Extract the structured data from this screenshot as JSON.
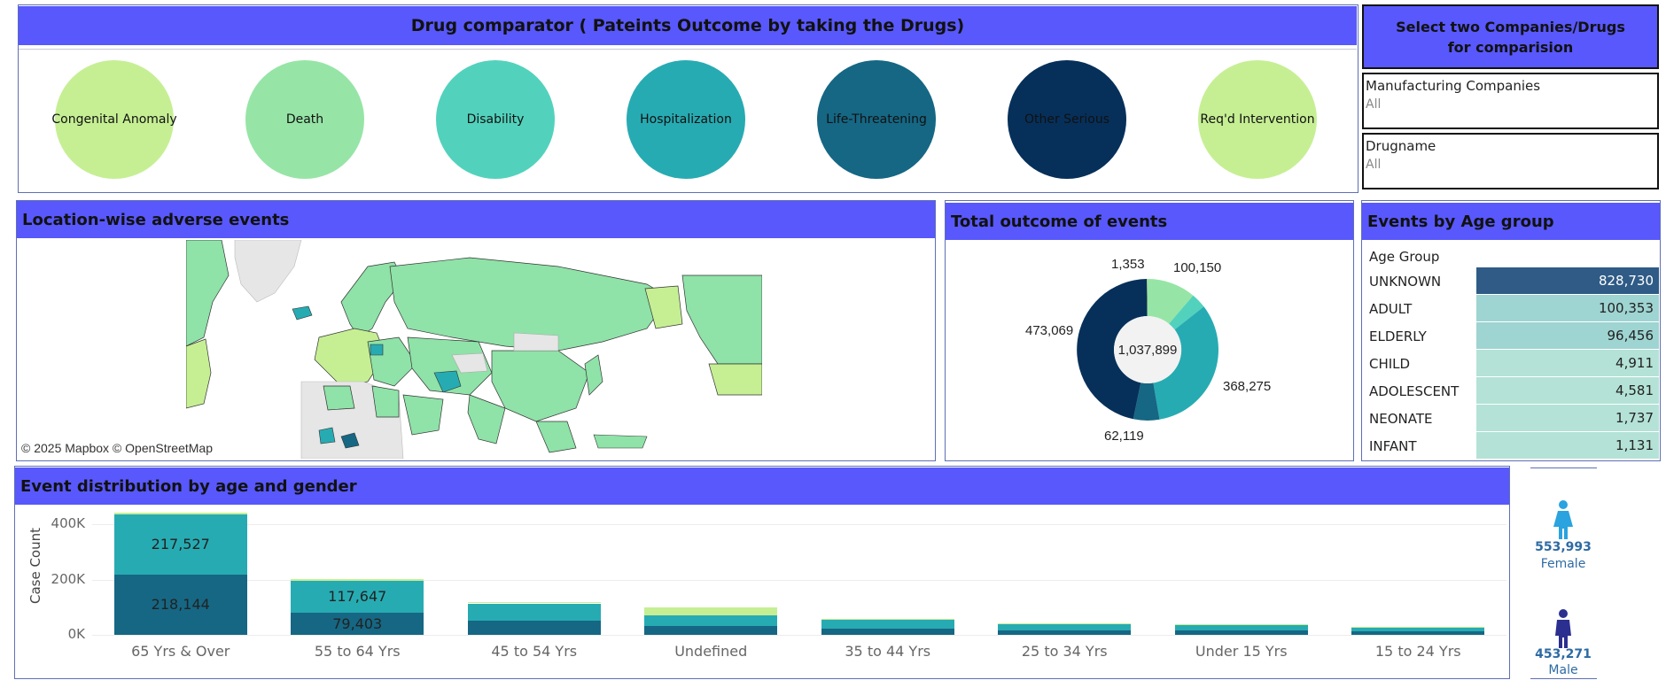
{
  "header": {
    "title": "Drug comparator ( Pateints Outcome by taking the Drugs)"
  },
  "outcomes": [
    {
      "label": "Congenital Anomaly",
      "color": "#c6ef94"
    },
    {
      "label": "Death",
      "color": "#96e5a6"
    },
    {
      "label": "Disability",
      "color": "#52d2bc"
    },
    {
      "label": "Hospitalization",
      "color": "#27abb2"
    },
    {
      "label": "Life-Threatening",
      "color": "#156784"
    },
    {
      "label": "Other Serious",
      "color": "#06305a"
    },
    {
      "label": "Req'd Intervention",
      "color": "#c6ef94"
    }
  ],
  "filters": {
    "heading_line1": "Select two Companies/Drugs",
    "heading_line2": "for comparision",
    "company_label": "Manufacturing Companies",
    "company_value": "All",
    "drug_label": "Drugname",
    "drug_value": "All"
  },
  "map": {
    "title": "Location-wise adverse events",
    "credit": "© 2025 Mapbox © OpenStreetMap"
  },
  "donut": {
    "title": "Total outcome of events",
    "center_label": "1,037,899",
    "labels": [
      "1,353",
      "100,150",
      "473,069",
      "368,275",
      "62,119"
    ]
  },
  "age_group": {
    "title": "Events by Age group",
    "header": "Age Group",
    "rows": [
      {
        "name": "UNKNOWN",
        "value": "828,730",
        "color": "#2f5b86",
        "text_color": "#ffffff"
      },
      {
        "name": "ADULT",
        "value": "100,353",
        "color": "#9ed4d2",
        "text_color": "#222222"
      },
      {
        "name": "ELDERLY",
        "value": "96,456",
        "color": "#9ed4d2",
        "text_color": "#222222"
      },
      {
        "name": "CHILD",
        "value": "4,911",
        "color": "#b4e2d6",
        "text_color": "#222222"
      },
      {
        "name": "ADOLESCENT",
        "value": "4,581",
        "color": "#b4e2d6",
        "text_color": "#222222"
      },
      {
        "name": "NEONATE",
        "value": "1,737",
        "color": "#b4e2d6",
        "text_color": "#222222"
      },
      {
        "name": "INFANT",
        "value": "1,131",
        "color": "#b4e2d6",
        "text_color": "#222222"
      }
    ]
  },
  "distribution": {
    "title": "Event distribution by age and gender"
  },
  "chart_data": {
    "type": "bar",
    "stacked": true,
    "title": "Event distribution by age and gender",
    "xlabel": "",
    "ylabel": "Case Count",
    "ylim": [
      0,
      440000
    ],
    "y_ticks": [
      "0K",
      "200K",
      "400K"
    ],
    "y_tick_values": [
      0,
      200000,
      400000
    ],
    "categories": [
      "65 Yrs & Over",
      "55 to 64 Yrs",
      "45 to 54 Yrs",
      "Undefined",
      "35 to 44 Yrs",
      "25 to 34 Yrs",
      "Under 15 Yrs",
      "15 to 24 Yrs"
    ],
    "series": [
      {
        "color": "#156784",
        "values": [
          218144,
          79403,
          52000,
          32000,
          22000,
          16000,
          15000,
          12000
        ],
        "labels": [
          "218,144",
          "79,403",
          "",
          "",
          "",
          "",
          "",
          ""
        ]
      },
      {
        "color": "#27abb2",
        "values": [
          217527,
          117647,
          62000,
          38000,
          34000,
          24000,
          22000,
          14000
        ],
        "labels": [
          "217,527",
          "117,647",
          "",
          "",
          "",
          "",
          "",
          ""
        ]
      },
      {
        "color": "#c6ef94",
        "values": [
          6000,
          5000,
          4000,
          30000,
          3000,
          2000,
          2000,
          2000
        ],
        "labels": [
          "",
          "",
          "",
          "",
          "",
          "",
          "",
          ""
        ]
      }
    ],
    "grid": true
  },
  "gender": {
    "female_value": "553,993",
    "female_label": "Female",
    "female_color": "#2aa3df",
    "male_value": "453,271",
    "male_label": "Male",
    "male_color": "#2b2f8f"
  }
}
